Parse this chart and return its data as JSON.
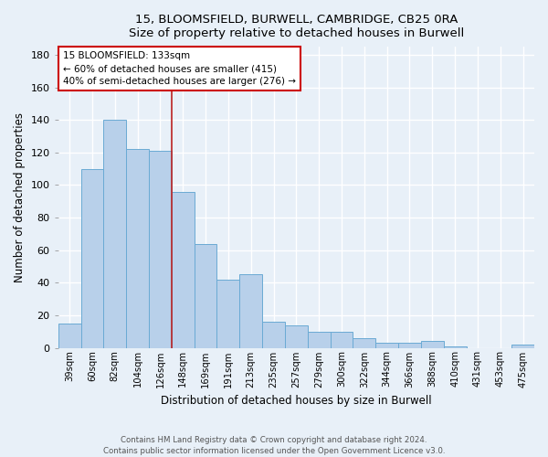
{
  "title_line1": "15, BLOOMSFIELD, BURWELL, CAMBRIDGE, CB25 0RA",
  "title_line2": "Size of property relative to detached houses in Burwell",
  "xlabel": "Distribution of detached houses by size in Burwell",
  "ylabel": "Number of detached properties",
  "bar_labels": [
    "39sqm",
    "60sqm",
    "82sqm",
    "104sqm",
    "126sqm",
    "148sqm",
    "169sqm",
    "191sqm",
    "213sqm",
    "235sqm",
    "257sqm",
    "279sqm",
    "300sqm",
    "322sqm",
    "344sqm",
    "366sqm",
    "388sqm",
    "410sqm",
    "431sqm",
    "453sqm",
    "475sqm"
  ],
  "bar_values": [
    15,
    110,
    140,
    122,
    121,
    96,
    64,
    42,
    45,
    16,
    14,
    10,
    10,
    6,
    3,
    3,
    4,
    1,
    0,
    0,
    2
  ],
  "bar_color": "#b8d0ea",
  "bar_edge_color": "#6aaad4",
  "background_color": "#e8f0f8",
  "grid_color": "#ffffff",
  "annotation_text": "15 BLOOMSFIELD: 133sqm\n← 60% of detached houses are smaller (415)\n40% of semi-detached houses are larger (276) →",
  "annotation_box_facecolor": "#ffffff",
  "annotation_box_edgecolor": "#cc0000",
  "vline_x": 4.5,
  "vline_color": "#bb2222",
  "ylim": [
    0,
    185
  ],
  "yticks": [
    0,
    20,
    40,
    60,
    80,
    100,
    120,
    140,
    160,
    180
  ],
  "footnote_line1": "Contains HM Land Registry data © Crown copyright and database right 2024.",
  "footnote_line2": "Contains public sector information licensed under the Open Government Licence v3.0."
}
